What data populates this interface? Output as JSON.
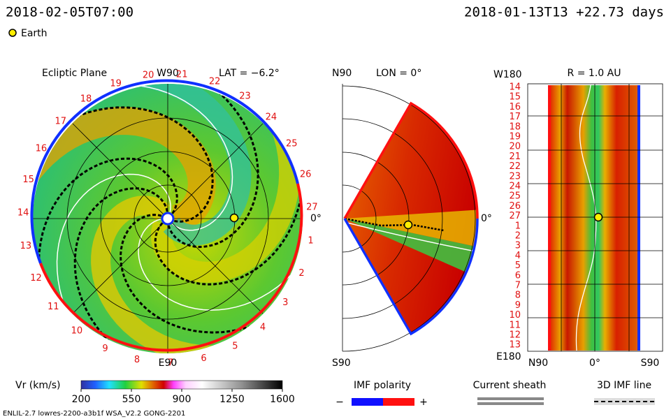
{
  "header": {
    "model_time": "2018-02-05T07:00",
    "run_info": "2018-01-13T13 +22.73 days"
  },
  "legend": {
    "earth": "Earth"
  },
  "ecliptic": {
    "title": "Ecliptic Plane",
    "top": "W90",
    "lat": "LAT = −6.2°",
    "right": "0°",
    "bottom": "E90",
    "ring_labels": [
      1,
      2,
      3,
      4,
      5,
      6,
      7,
      8,
      9,
      10,
      11,
      12,
      13,
      14,
      15,
      16,
      17,
      18,
      19,
      20,
      21,
      22,
      23,
      24,
      25,
      26,
      27
    ]
  },
  "meridional": {
    "top": "N90",
    "lon": "LON = 0°",
    "right": "0°",
    "bottom": "S90"
  },
  "strip": {
    "top": "W180",
    "radius": "R = 1.0 AU",
    "bottom": "E180",
    "x_labels": [
      "N90",
      "0°",
      "S90"
    ],
    "row_labels": [
      14,
      15,
      16,
      17,
      18,
      19,
      20,
      21,
      22,
      23,
      24,
      25,
      26,
      27,
      1,
      2,
      3,
      4,
      5,
      6,
      7,
      8,
      9,
      10,
      11,
      12,
      13
    ]
  },
  "colorbar": {
    "label": "Vr (km/s)",
    "range": [
      200,
      1600
    ],
    "ticks": [
      200,
      550,
      900,
      1250,
      1600
    ]
  },
  "keys": {
    "imf": "IMF polarity",
    "minus": "−",
    "plus": "+",
    "sheath": "Current sheath",
    "imf_line": "3D IMF line"
  },
  "footer": "ENLIL-2.7 lowres-2200-a3b1f WSA_V2.2 GONG-2201"
}
